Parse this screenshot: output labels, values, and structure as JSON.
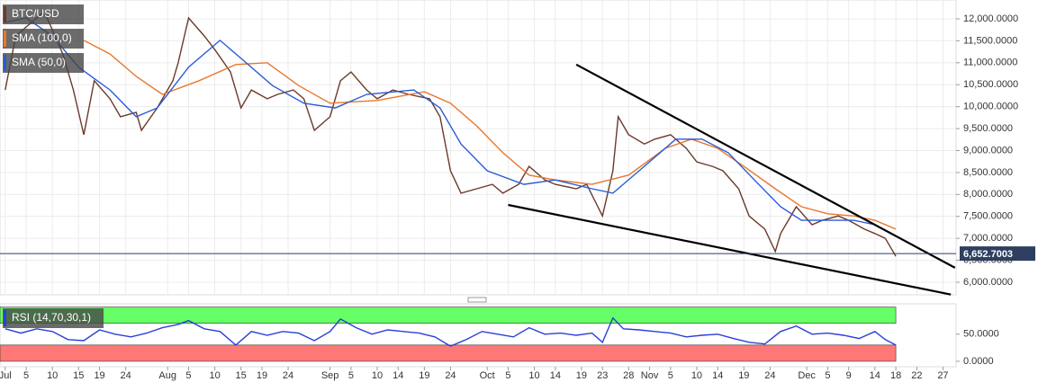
{
  "chart_data": [
    {
      "type": "line",
      "ylim": [
        5713,
        12430
      ],
      "yticks": [
        {
          "value": 6000,
          "label": "6,000.0000"
        },
        {
          "value": 6500,
          "label": "6,500.0000"
        },
        {
          "value": 7000,
          "label": "7,000.0000"
        },
        {
          "value": 7500,
          "label": "7,500.0000"
        },
        {
          "value": 8000,
          "label": "8,000.0000"
        },
        {
          "value": 8500,
          "label": "8,500.0000"
        },
        {
          "value": 9000,
          "label": "9,000.0000"
        },
        {
          "value": 9500,
          "label": "9,500.0000"
        },
        {
          "value": 10000,
          "label": "10,000.0000"
        },
        {
          "value": 10500,
          "label": "10,500.0000"
        },
        {
          "value": 11000,
          "label": "11,000.0000"
        },
        {
          "value": 11500,
          "label": "11,500.0000"
        },
        {
          "value": 12000,
          "label": "12,000.0000"
        }
      ],
      "xlim": [
        -1,
        181.5
      ],
      "grid": true,
      "last_price": {
        "value": 6652.7003,
        "label": "6,652.7003",
        "color": "#2f3f5f"
      },
      "series": [
        {
          "name": "BTC/USD",
          "color": "#6b3a2a",
          "x": [
            0,
            2,
            4,
            7,
            8,
            11,
            13,
            15,
            17,
            20,
            22,
            25,
            26,
            29,
            32,
            33,
            35,
            38,
            40,
            43,
            45,
            47,
            50,
            52,
            55,
            57,
            59,
            62,
            64,
            66,
            69,
            71,
            74,
            77,
            81,
            83,
            85,
            87,
            90,
            93,
            95,
            98,
            100,
            103,
            105,
            109,
            111,
            114,
            116,
            117,
            119,
            122,
            124,
            127,
            130,
            132,
            135,
            137,
            140,
            142,
            145,
            147,
            148,
            151,
            154,
            156,
            159,
            161,
            164,
            166,
            168,
            170
          ],
          "values": [
            10380,
            11610,
            11815,
            12120,
            12020,
            11200,
            10380,
            9360,
            10590,
            10180,
            9770,
            9870,
            9460,
            9970,
            10590,
            11000,
            12020,
            11610,
            11300,
            10790,
            9970,
            10380,
            10180,
            10280,
            10380,
            10180,
            9460,
            9770,
            10590,
            10790,
            10380,
            10180,
            10380,
            10280,
            10180,
            9770,
            8540,
            8030,
            8130,
            8230,
            8030,
            8230,
            8640,
            8330,
            8230,
            8130,
            8230,
            7510,
            8540,
            9770,
            9360,
            9150,
            9260,
            9360,
            9050,
            8740,
            8640,
            8540,
            8130,
            7510,
            7210,
            6700,
            7110,
            7720,
            7310,
            7410,
            7510,
            7410,
            7210,
            7110,
            7000,
            6590
          ]
        },
        {
          "name": "SMA (100,0)",
          "color": "#e8772e",
          "x": [
            15,
            20,
            25,
            30,
            37,
            44,
            50,
            56,
            62,
            71,
            80,
            85,
            90,
            95,
            100,
            105,
            112,
            119,
            126,
            131,
            136,
            141,
            147,
            152,
            157,
            162,
            166,
            170
          ],
          "values": [
            11510,
            11200,
            10690,
            10280,
            10590,
            10960,
            11000,
            10480,
            10080,
            10140,
            10340,
            10080,
            9560,
            8950,
            8440,
            8330,
            8230,
            8440,
            9050,
            9260,
            9050,
            8640,
            8130,
            7720,
            7560,
            7510,
            7410,
            7210
          ]
        },
        {
          "name": "SMA (50,0)",
          "color": "#2a5bd7",
          "x": [
            0,
            4,
            9,
            14,
            20,
            25,
            29,
            35,
            41,
            45,
            51,
            57,
            63,
            69,
            78,
            83,
            87,
            92,
            99,
            105,
            112,
            116,
            121,
            128,
            133,
            138,
            143,
            148,
            152,
            157,
            162,
            166,
            169
          ],
          "values": [
            11920,
            12020,
            11610,
            10900,
            10380,
            9770,
            9970,
            10900,
            11510,
            11100,
            10480,
            10080,
            9970,
            10280,
            10380,
            9970,
            9150,
            8540,
            8230,
            8330,
            8130,
            8030,
            8540,
            9260,
            9260,
            8950,
            8330,
            7720,
            7410,
            7410,
            7410,
            7310,
            7110
          ]
        }
      ],
      "trendlines": [
        {
          "color": "#000000",
          "x": [
            109,
            181.3
          ],
          "values": [
            10960,
            6330
          ]
        },
        {
          "color": "#000000",
          "x": [
            96,
            180.5
          ],
          "values": [
            7760,
            5720
          ]
        }
      ]
    },
    {
      "type": "line",
      "ylim": [
        -10,
        106
      ],
      "yticks": [
        {
          "value": 50,
          "label": "50.0000"
        },
        {
          "value": 0,
          "label": "0.0000"
        }
      ],
      "xlim": [
        -1,
        181.5
      ],
      "xticks": [
        {
          "value": 0,
          "label": "Jul"
        },
        {
          "value": 4,
          "label": "5"
        },
        {
          "value": 9,
          "label": "10"
        },
        {
          "value": 14,
          "label": "15"
        },
        {
          "value": 18,
          "label": "19"
        },
        {
          "value": 23,
          "label": "24"
        },
        {
          "value": 31,
          "label": "Aug"
        },
        {
          "value": 35,
          "label": "5"
        },
        {
          "value": 40,
          "label": "10"
        },
        {
          "value": 45,
          "label": "15"
        },
        {
          "value": 49,
          "label": "19"
        },
        {
          "value": 54,
          "label": "24"
        },
        {
          "value": 62,
          "label": "Sep"
        },
        {
          "value": 66,
          "label": "5"
        },
        {
          "value": 71,
          "label": "10"
        },
        {
          "value": 75,
          "label": "14"
        },
        {
          "value": 80,
          "label": "19"
        },
        {
          "value": 85,
          "label": "24"
        },
        {
          "value": 92,
          "label": "Oct"
        },
        {
          "value": 96,
          "label": "5"
        },
        {
          "value": 101,
          "label": "10"
        },
        {
          "value": 105,
          "label": "14"
        },
        {
          "value": 110,
          "label": "19"
        },
        {
          "value": 114,
          "label": "23"
        },
        {
          "value": 119,
          "label": "28"
        },
        {
          "value": 123,
          "label": "Nov"
        },
        {
          "value": 127,
          "label": "5"
        },
        {
          "value": 132,
          "label": "10"
        },
        {
          "value": 136,
          "label": "14"
        },
        {
          "value": 141,
          "label": "19"
        },
        {
          "value": 146,
          "label": "24"
        },
        {
          "value": 153,
          "label": "Dec"
        },
        {
          "value": 157,
          "label": "5"
        },
        {
          "value": 161,
          "label": "9"
        },
        {
          "value": 166,
          "label": "14"
        },
        {
          "value": 170,
          "label": "18"
        },
        {
          "value": 174,
          "label": "22"
        },
        {
          "value": 179,
          "label": "27"
        }
      ],
      "bands": [
        {
          "from": 70,
          "to": 100,
          "color": "#66ff66"
        },
        {
          "from": 0,
          "to": 30,
          "color": "#ff7878"
        }
      ],
      "series": [
        {
          "name": "RSI (14,70,30,1)",
          "color": "#2a3fd7",
          "x": [
            0,
            3,
            6,
            9,
            12,
            15,
            18,
            21,
            24,
            27,
            30,
            33,
            35,
            38,
            41,
            44,
            47,
            50,
            53,
            56,
            59,
            62,
            64,
            67,
            70,
            73,
            76,
            79,
            82,
            85,
            88,
            91,
            94,
            97,
            100,
            103,
            106,
            109,
            112,
            114,
            116,
            118,
            121,
            124,
            127,
            130,
            133,
            136,
            139,
            142,
            145,
            148,
            151,
            154,
            157,
            160,
            163,
            166,
            168,
            170
          ],
          "values": [
            60,
            52,
            60,
            55,
            40,
            38,
            58,
            50,
            45,
            52,
            62,
            68,
            75,
            60,
            55,
            30,
            55,
            48,
            55,
            52,
            38,
            55,
            78,
            62,
            50,
            58,
            55,
            52,
            45,
            28,
            40,
            55,
            50,
            45,
            62,
            50,
            52,
            48,
            52,
            35,
            80,
            60,
            58,
            55,
            52,
            45,
            48,
            50,
            42,
            35,
            32,
            55,
            65,
            50,
            52,
            48,
            42,
            55,
            40,
            30
          ]
        }
      ]
    }
  ]
}
